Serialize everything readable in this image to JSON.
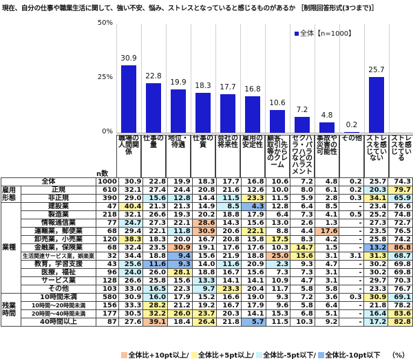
{
  "title": "現在、自分の仕事や職業生活に関して、強い不安、悩み、ストレスとなっていると感じるものがあるか ［制限回答形式(3つまで)］",
  "colors": {
    "bar": "#1c1ccf",
    "plus10": "#f8c39c",
    "plus5": "#fff49b",
    "minus5": "#cdf2fa",
    "minus10": "#8cb8ee"
  },
  "chart_data": {
    "type": "bar",
    "title": "",
    "yticks": [
      "50%",
      "25%",
      "0%"
    ],
    "ylim": [
      0,
      50
    ],
    "legend": "全体【n=1000】",
    "legend_position": "top-right",
    "categories": [
      "職場の人間関係",
      "仕事の量",
      "地位・待遇",
      "仕事の質",
      "会社の将来性",
      "雇用の安定性",
      "顧客、取引先等からのクレーム",
      "セクハラ・パワハラなどのハラスメント",
      "事故や災害の可能性",
      "その他",
      "ストレスを感じていない"
    ],
    "series": [
      {
        "name": "全体【n=1000】",
        "values": [
          30.9,
          22.8,
          19.9,
          18.3,
          17.7,
          16.8,
          10.6,
          7.2,
          4.8,
          0.2,
          25.7
        ]
      }
    ]
  },
  "table": {
    "n_header": "n数",
    "columns": [
      "職場の人間関係",
      "仕事の量",
      "地位・待遇",
      "仕事の質",
      "会社の将来性",
      "雇用の安定性",
      "顧客、取引先等からのクレーム",
      "セクハラ・パワハラなどのハラスメント",
      "事故や災害の可能性",
      "その他",
      "ストレスを感じていない",
      "ストレスを感じている"
    ],
    "total": {
      "label": "全体",
      "n": "1000",
      "values": [
        "30.9",
        "22.8",
        "19.9",
        "18.3",
        "17.7",
        "16.8",
        "10.6",
        "7.2",
        "4.8",
        "0.2",
        "25.7",
        "74.3"
      ],
      "hl": [
        "",
        "",
        "",
        "",
        "",
        "",
        "",
        "",
        "",
        "",
        "",
        ""
      ]
    },
    "groups": [
      {
        "label": "雇用形態",
        "rows": [
          {
            "label": "正規",
            "n": "610",
            "values": [
              "32.1",
              "27.4",
              "24.4",
              "20.8",
              "21.6",
              "12.6",
              "10.0",
              "8.0",
              "6.1",
              "0.2",
              "20.3",
              "79.7"
            ],
            "hl": [
              "",
              "",
              "",
              "",
              "",
              "",
              "",
              "",
              "",
              "",
              "c",
              "y"
            ]
          },
          {
            "label": "非正規",
            "n": "390",
            "values": [
              "29.0",
              "15.6",
              "12.8",
              "14.4",
              "11.5",
              "23.3",
              "11.5",
              "5.9",
              "2.8",
              "0.3",
              "34.1",
              "65.9"
            ],
            "hl": [
              "",
              "c",
              "c",
              "",
              "c",
              "y",
              "",
              "",
              "",
              "",
              "y",
              "c"
            ]
          }
        ]
      },
      {
        "label": "業種",
        "rows": [
          {
            "label": "建設業",
            "n": "47",
            "values": [
              "40.4",
              "21.3",
              "21.3",
              "14.9",
              "8.5",
              "4.3",
              "12.8",
              "6.4",
              "8.5",
              "-",
              "23.4",
              "76.6"
            ],
            "hl": [
              "y",
              "",
              "",
              "",
              "c",
              "b",
              "",
              "",
              "",
              "",
              "",
              ""
            ]
          },
          {
            "label": "製造業",
            "n": "218",
            "values": [
              "32.1",
              "26.6",
              "19.3",
              "20.2",
              "18.8",
              "17.9",
              "6.4",
              "7.3",
              "4.1",
              "0.5",
              "25.2",
              "74.8"
            ],
            "hl": [
              "",
              "",
              "",
              "",
              "",
              "",
              "",
              "",
              "",
              "",
              "",
              ""
            ]
          },
          {
            "label": "情報通信業",
            "n": "77",
            "values": [
              "24.7",
              "27.3",
              "22.1",
              "28.6",
              "14.3",
              "15.6",
              "13.0",
              "2.6",
              "1.3",
              "-",
              "27.3",
              "72.7"
            ],
            "hl": [
              "c",
              "",
              "",
              "o",
              "",
              "",
              "",
              "",
              "",
              "",
              "",
              ""
            ]
          },
          {
            "label": "運輸業，郵便業",
            "n": "68",
            "values": [
              "29.4",
              "22.1",
              "11.8",
              "30.9",
              "20.6",
              "22.1",
              "8.8",
              "4.4",
              "17.6",
              "-",
              "23.5",
              "76.5"
            ],
            "hl": [
              "",
              "",
              "c",
              "o",
              "",
              "y",
              "",
              "",
              "o",
              "",
              "",
              ""
            ]
          },
          {
            "label": "卸売業，小売業",
            "n": "120",
            "values": [
              "38.3",
              "18.3",
              "20.0",
              "16.7",
              "20.8",
              "15.8",
              "17.5",
              "8.3",
              "4.2",
              "-",
              "25.8",
              "74.2"
            ],
            "hl": [
              "y",
              "",
              "",
              "",
              "",
              "",
              "y",
              "",
              "",
              "",
              "",
              ""
            ]
          },
          {
            "label": "金融業，保険業",
            "n": "68",
            "values": [
              "32.4",
              "23.5",
              "30.9",
              "19.1",
              "17.6",
              "17.6",
              "10.3",
              "14.7",
              "1.5",
              "-",
              "13.2",
              "86.8"
            ],
            "hl": [
              "",
              "",
              "o",
              "",
              "",
              "",
              "",
              "y",
              "",
              "",
              "b",
              "o"
            ]
          },
          {
            "label": "生活関連サービス業，娯楽業",
            "small": true,
            "n": "32",
            "values": [
              "34.4",
              "18.8",
              "9.4",
              "15.6",
              "21.9",
              "18.8",
              "25.0",
              "15.6",
              "3.1",
              "3.1",
              "31.3",
              "68.7"
            ],
            "hl": [
              "",
              "",
              "b",
              "",
              "",
              "",
              "o",
              "y",
              "",
              "",
              "y",
              "c"
            ]
          },
          {
            "label": "教育，学習支援",
            "n": "43",
            "values": [
              "25.6",
              "11.6",
              "9.3",
              "14.0",
              "11.6",
              "20.9",
              "2.3",
              "9.3",
              "4.7",
              "-",
              "30.2",
              "69.8"
            ],
            "hl": [
              "c",
              "b",
              "b",
              "",
              "c",
              "",
              "c",
              "",
              "",
              "",
              "",
              ""
            ]
          },
          {
            "label": "医療，福祉",
            "n": "96",
            "values": [
              "24.0",
              "26.0",
              "28.1",
              "18.8",
              "16.7",
              "15.6",
              "7.3",
              "7.3",
              "3.1",
              "-",
              "30.2",
              "69.8"
            ],
            "hl": [
              "c",
              "",
              "y",
              "",
              "",
              "",
              "",
              "",
              "",
              "",
              "",
              ""
            ]
          },
          {
            "label": "サービス業",
            "n": "128",
            "values": [
              "26.6",
              "25.8",
              "15.6",
              "13.3",
              "14.1",
              "14.1",
              "10.9",
              "4.7",
              "3.1",
              "-",
              "29.7",
              "70.3"
            ],
            "hl": [
              "",
              "",
              "",
              "c",
              "",
              "",
              "",
              "",
              "",
              "",
              "",
              ""
            ]
          },
          {
            "label": "その他",
            "n": "103",
            "values": [
              "33.0",
              "16.5",
              "22.3",
              "9.7",
              "23.3",
              "20.4",
              "11.7",
              "5.8",
              "5.8",
              "-",
              "23.3",
              "76.7"
            ],
            "hl": [
              "",
              "c",
              "",
              "c",
              "y",
              "",
              "",
              "",
              "",
              "",
              "",
              ""
            ]
          }
        ]
      },
      {
        "label": "残業時間",
        "rows": [
          {
            "label": "10時間未満",
            "n": "580",
            "values": [
              "30.9",
              "16.0",
              "17.9",
              "15.2",
              "16.6",
              "19.0",
              "9.3",
              "7.2",
              "3.6",
              "0.3",
              "30.9",
              "69.1"
            ],
            "hl": [
              "",
              "c",
              "",
              "",
              "",
              "",
              "",
              "",
              "",
              "",
              "y",
              "c"
            ]
          },
          {
            "label": "10時間～20時間未満",
            "small": true,
            "n": "156",
            "values": [
              "33.3",
              "28.2",
              "21.2",
              "19.2",
              "16.7",
              "17.9",
              "9.6",
              "5.8",
              "6.4",
              "-",
              "21.8",
              "78.2"
            ],
            "hl": [
              "",
              "y",
              "",
              "",
              "",
              "",
              "",
              "",
              "",
              "",
              "",
              ""
            ]
          },
          {
            "label": "20時間～40時間未満",
            "small": true,
            "n": "177",
            "values": [
              "30.5",
              "32.2",
              "26.0",
              "23.7",
              "20.3",
              "14.1",
              "15.3",
              "6.8",
              "5.1",
              "-",
              "16.4",
              "83.6"
            ],
            "hl": [
              "",
              "y",
              "y",
              "y",
              "",
              "",
              "",
              "",
              "",
              "",
              "c",
              "y"
            ]
          },
          {
            "label": "40時間以上",
            "n": "87",
            "values": [
              "27.6",
              "39.1",
              "18.4",
              "26.4",
              "21.8",
              "5.7",
              "11.5",
              "10.3",
              "9.2",
              "-",
              "17.2",
              "82.8"
            ],
            "hl": [
              "",
              "o",
              "",
              "y",
              "",
              "b",
              "",
              "",
              "",
              "",
              "c",
              "y"
            ]
          }
        ]
      }
    ]
  },
  "footer": {
    "plus10": "全体比+10pt以上/",
    "plus5": "全体比+5pt以上/",
    "minus5": "全体比-5pt以下/",
    "minus10": "全体比-10pt以下",
    "unit": "（%）"
  }
}
